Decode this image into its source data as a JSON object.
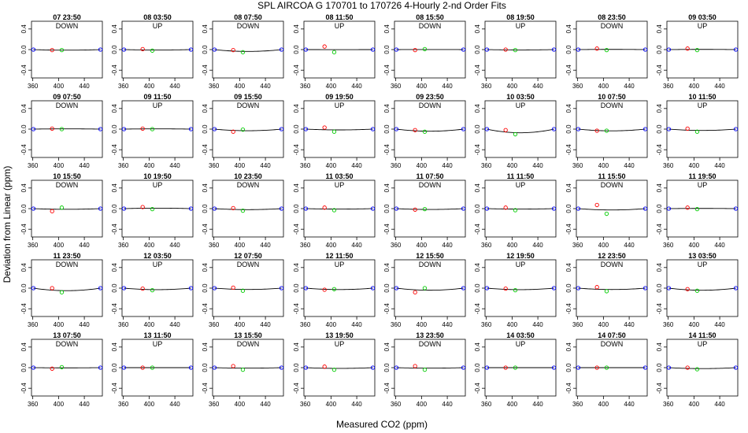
{
  "chart_data": {
    "type": "scatter",
    "title": "SPL   AIRCOA G   170701 to 170726   4-Hourly 2-nd Order Fits",
    "xlabel": "Measured CO2 (ppm)",
    "ylabel": "Deviation from Linear (ppm)",
    "xlim": [
      358,
      468
    ],
    "ylim": [
      -0.55,
      0.55
    ],
    "xticks": [
      360,
      400,
      440
    ],
    "yticks": [
      -0.4,
      0.0,
      0.4
    ],
    "ytick_labels": [
      "-0.4",
      "0.0",
      "0.4"
    ],
    "point_x": {
      "blue_low": 361,
      "red": 390,
      "green": 405,
      "blue_high": 465
    },
    "colors": {
      "blue": "#0000ff",
      "red": "#ff0000",
      "green": "#00cc00",
      "curve": "#000000"
    },
    "panels": [
      {
        "label": "07 23:50",
        "mode": "DOWN",
        "red": -0.01,
        "green": -0.01
      },
      {
        "label": "08 03:50",
        "mode": "UP",
        "red": 0.01,
        "green": -0.02
      },
      {
        "label": "08 07:50",
        "mode": "DOWN",
        "red": -0.01,
        "green": -0.05
      },
      {
        "label": "08 11:50",
        "mode": "UP",
        "red": 0.06,
        "green": -0.05
      },
      {
        "label": "08 15:50",
        "mode": "DOWN",
        "red": -0.01,
        "green": 0.01
      },
      {
        "label": "08 19:50",
        "mode": "UP",
        "red": 0.0,
        "green": -0.01
      },
      {
        "label": "08 23:50",
        "mode": "DOWN",
        "red": 0.02,
        "green": -0.01
      },
      {
        "label": "09 03:50",
        "mode": "UP",
        "red": 0.02,
        "green": -0.01
      },
      {
        "label": "09 07:50",
        "mode": "DOWN",
        "red": 0.01,
        "green": 0.0
      },
      {
        "label": "09 11:50",
        "mode": "UP",
        "red": 0.01,
        "green": 0.0
      },
      {
        "label": "09 15:50",
        "mode": "DOWN",
        "red": -0.05,
        "green": -0.01
      },
      {
        "label": "09 19:50",
        "mode": "UP",
        "red": 0.03,
        "green": -0.05
      },
      {
        "label": "09 23:50",
        "mode": "DOWN",
        "red": -0.02,
        "green": -0.05
      },
      {
        "label": "10 03:50",
        "mode": "UP",
        "red": -0.02,
        "green": -0.1
      },
      {
        "label": "10 07:50",
        "mode": "DOWN",
        "red": -0.03,
        "green": -0.03
      },
      {
        "label": "10 11:50",
        "mode": "UP",
        "red": 0.01,
        "green": -0.05
      },
      {
        "label": "10 15:50",
        "mode": "DOWN",
        "red": -0.05,
        "green": 0.02
      },
      {
        "label": "10 19:50",
        "mode": "UP",
        "red": 0.03,
        "green": -0.01
      },
      {
        "label": "10 23:50",
        "mode": "DOWN",
        "red": 0.01,
        "green": -0.04
      },
      {
        "label": "11 03:50",
        "mode": "UP",
        "red": 0.02,
        "green": -0.03
      },
      {
        "label": "11 07:50",
        "mode": "DOWN",
        "red": -0.02,
        "green": -0.01
      },
      {
        "label": "11 11:50",
        "mode": "UP",
        "red": 0.02,
        "green": -0.03
      },
      {
        "label": "11 15:50",
        "mode": "DOWN",
        "red": 0.07,
        "green": -0.1
      },
      {
        "label": "11 19:50",
        "mode": "UP",
        "red": 0.02,
        "green": -0.01
      },
      {
        "label": "11 23:50",
        "mode": "DOWN",
        "red": 0.0,
        "green": -0.08
      },
      {
        "label": "12 03:50",
        "mode": "UP",
        "red": -0.01,
        "green": -0.04
      },
      {
        "label": "12 07:50",
        "mode": "DOWN",
        "red": 0.01,
        "green": -0.05
      },
      {
        "label": "12 11:50",
        "mode": "UP",
        "red": -0.03,
        "green": -0.02
      },
      {
        "label": "12 15:50",
        "mode": "DOWN",
        "red": -0.08,
        "green": 0.0
      },
      {
        "label": "12 19:50",
        "mode": "UP",
        "red": -0.01,
        "green": -0.04
      },
      {
        "label": "12 23:50",
        "mode": "DOWN",
        "red": 0.02,
        "green": -0.06
      },
      {
        "label": "13 03:50",
        "mode": "UP",
        "red": -0.02,
        "green": -0.05
      },
      {
        "label": "13 07:50",
        "mode": "DOWN",
        "red": -0.02,
        "green": 0.01
      },
      {
        "label": "13 11:50",
        "mode": "UP",
        "red": 0.0,
        "green": 0.0
      },
      {
        "label": "13 15:50",
        "mode": "DOWN",
        "red": 0.03,
        "green": -0.04
      },
      {
        "label": "13 19:50",
        "mode": "UP",
        "red": 0.02,
        "green": -0.04
      },
      {
        "label": "13 23:50",
        "mode": "DOWN",
        "red": 0.03,
        "green": -0.04
      },
      {
        "label": "14 03:50",
        "mode": "UP",
        "red": 0.0,
        "green": 0.0
      },
      {
        "label": "14 07:50",
        "mode": "DOWN",
        "red": 0.0,
        "green": 0.0
      },
      {
        "label": "14 11:50",
        "mode": "UP",
        "red": 0.0,
        "green": -0.03
      }
    ]
  }
}
